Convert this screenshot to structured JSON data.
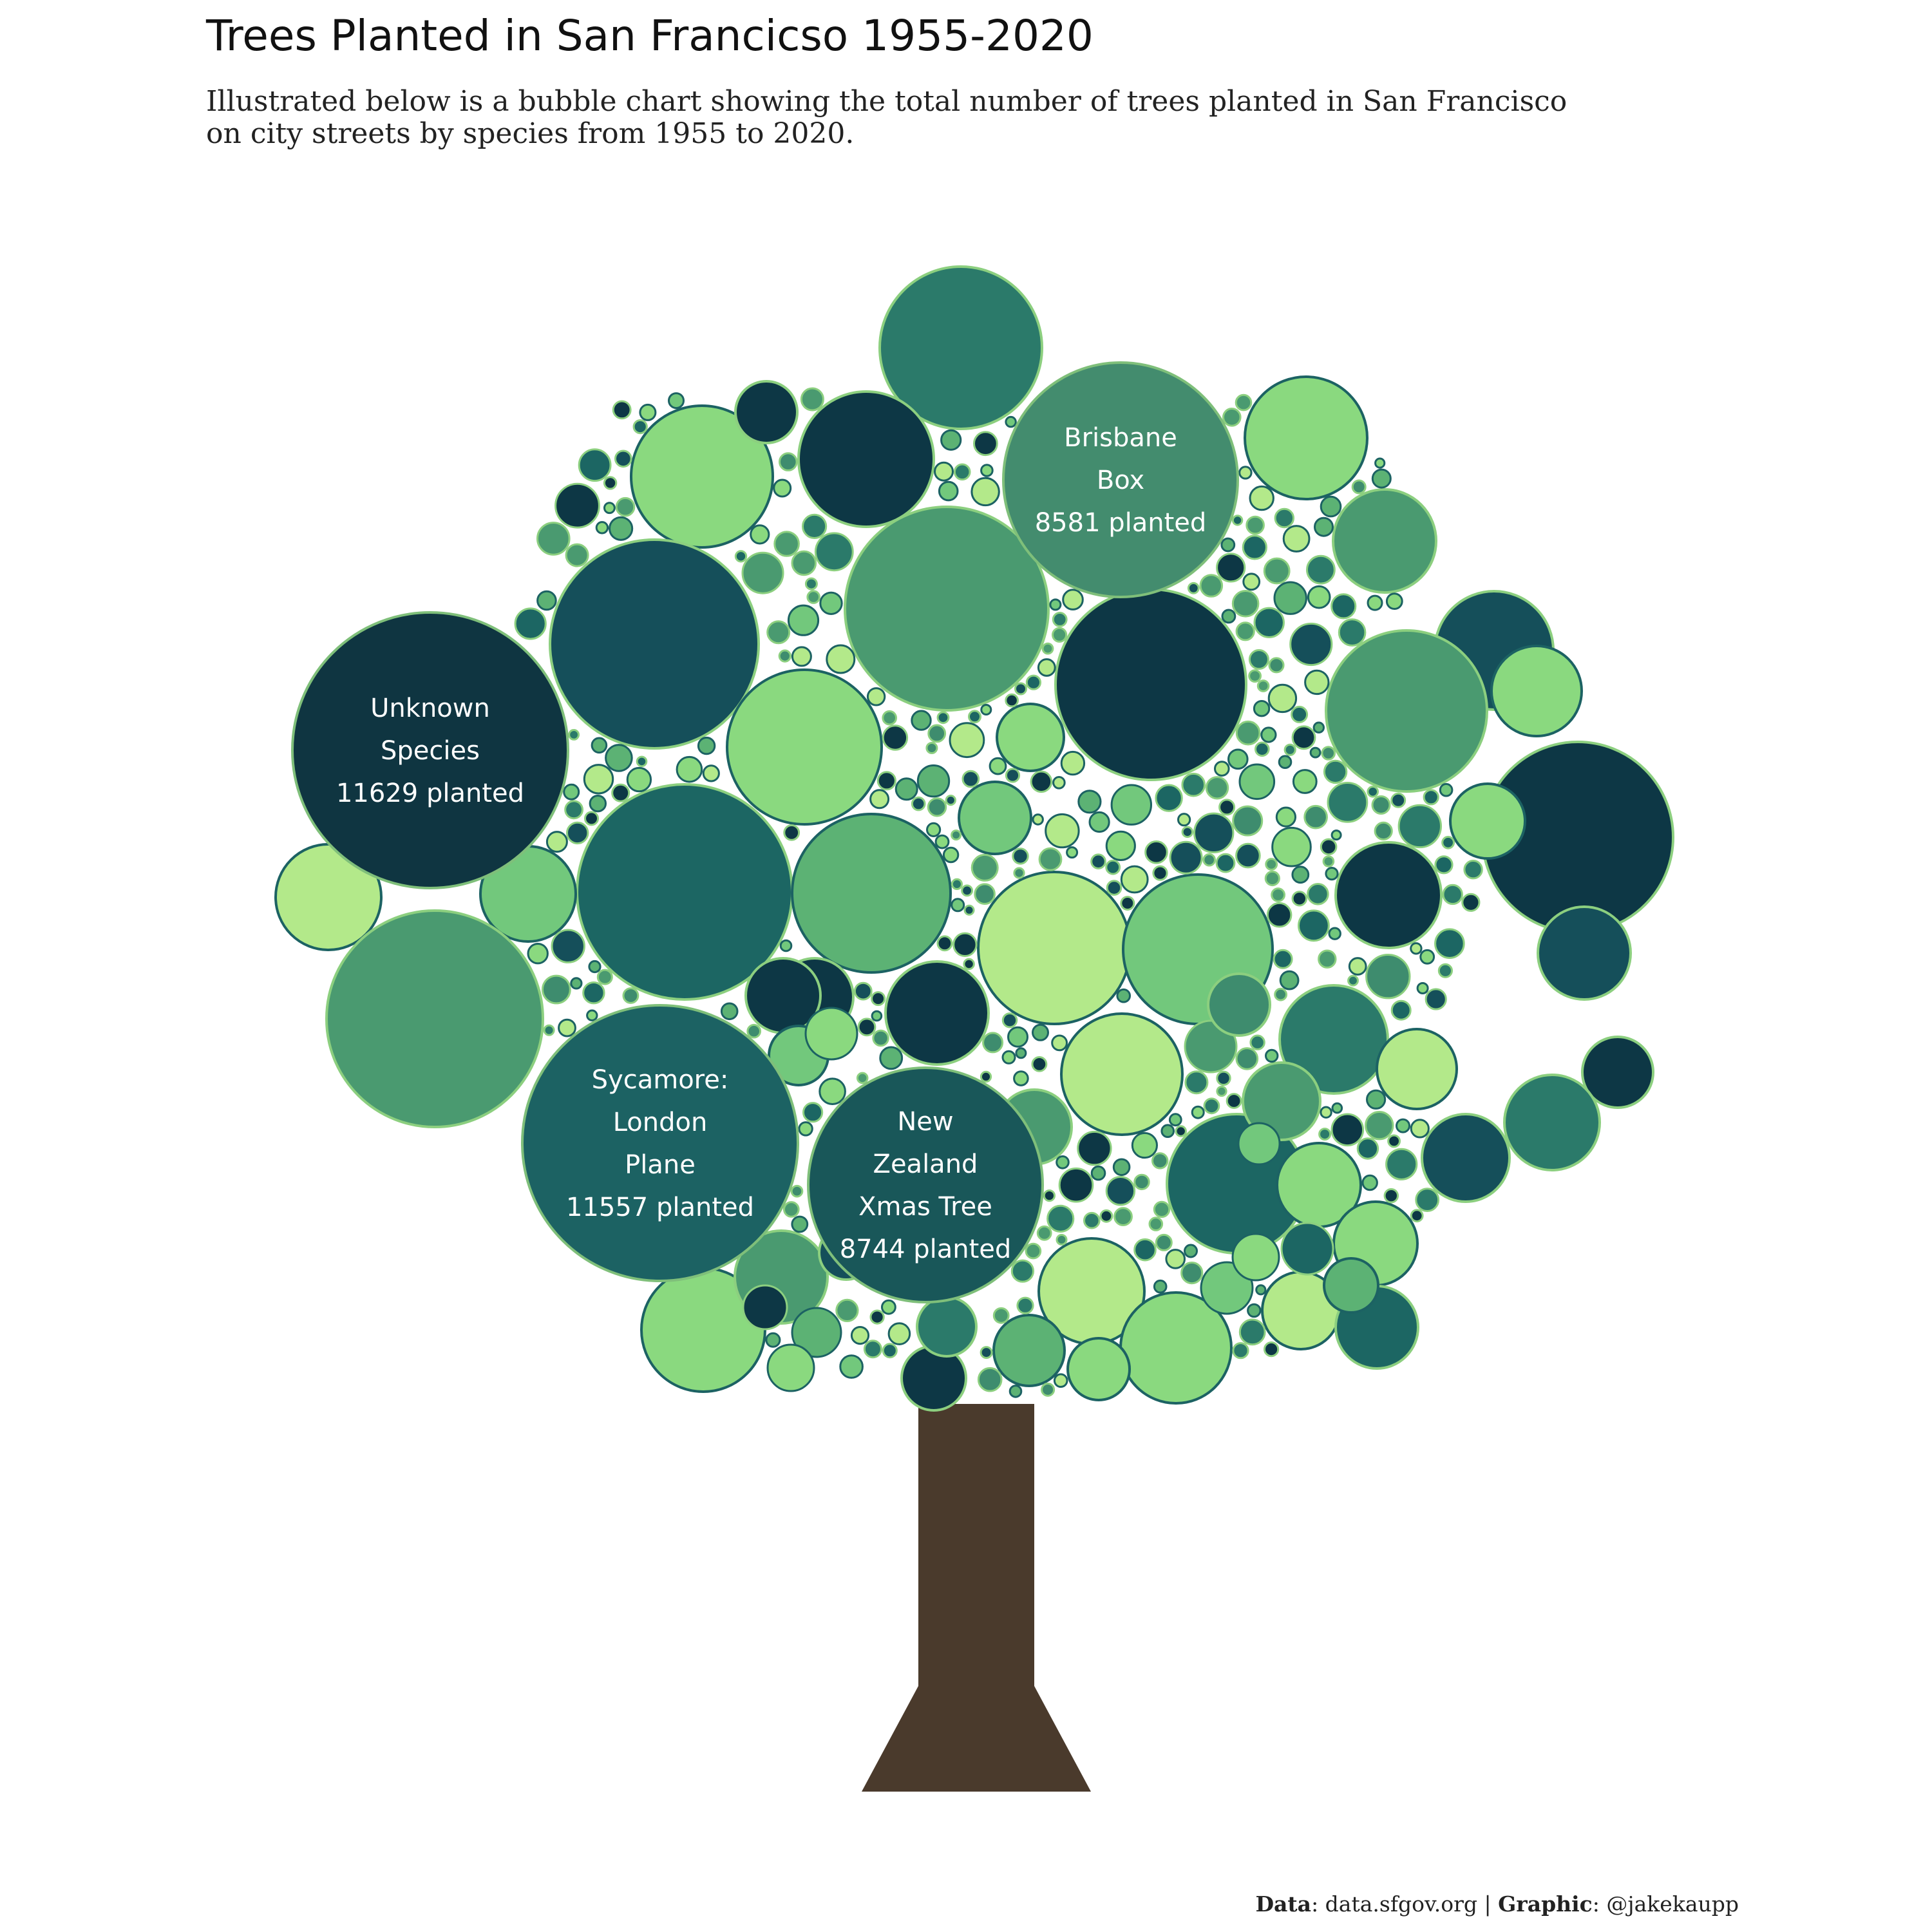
{
  "chart_data": {
    "type": "bubble",
    "title": "Trees Planted in San Francicso 1955-2020",
    "subtitle_lines": [
      "Illustrated below is a bubble chart showing the total number of trees planted in San Francisco",
      "on city streets by species from 1955 to 2020."
    ],
    "labeled_bubbles": [
      {
        "lines": [
          "Unknown",
          "Species",
          "11629 planted"
        ],
        "species": "Unknown Species",
        "planted": 11629,
        "color": "#0f3541"
      },
      {
        "lines": [
          "Sycamore:",
          "London",
          "Plane",
          "11557 planted"
        ],
        "species": "Sycamore: London Plane",
        "planted": 11557,
        "color": "#1c6263"
      },
      {
        "lines": [
          "New",
          "Zealand",
          "Xmas Tree",
          "8744 planted"
        ],
        "species": "New Zealand Xmas Tree",
        "planted": 8744,
        "color": "#195759"
      },
      {
        "lines": [
          "Brisbane",
          "Box",
          "8581 planted"
        ],
        "species": "Brisbane Box",
        "planted": 8581,
        "color": "#438c6e"
      }
    ],
    "caption": {
      "data_label": "Data",
      "data_value": ": data.sfgov.org | ",
      "graphic_label": "Graphic",
      "graphic_value": ": @jakekaupp"
    },
    "palette": [
      "#0d3745",
      "#154f5a",
      "#1c6663",
      "#2b7a6a",
      "#3e8c6e",
      "#4a9a70",
      "#5cb274",
      "#72c87c",
      "#8ad97f",
      "#b3e98a"
    ],
    "trunk_color": "#4a3a2c"
  }
}
